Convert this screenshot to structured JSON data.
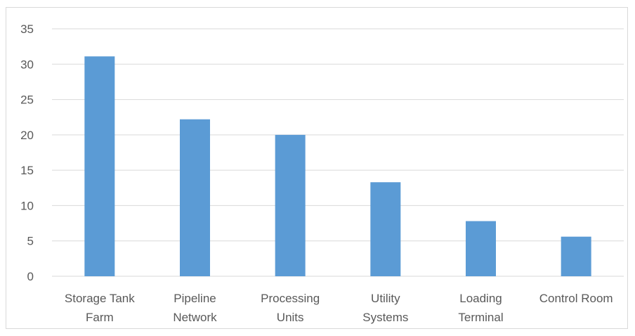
{
  "chart_data": {
    "type": "bar",
    "categories": [
      [
        "Storage Tank",
        "Farm"
      ],
      [
        "Pipeline",
        "Network"
      ],
      [
        "Processing",
        "Units"
      ],
      [
        "Utility",
        "Systems"
      ],
      [
        "Loading",
        "Terminal"
      ],
      [
        "Control Room"
      ]
    ],
    "values": [
      31.1,
      22.2,
      20.0,
      13.3,
      7.8,
      5.6
    ],
    "title": "",
    "xlabel": "",
    "ylabel": "",
    "ylim": [
      0,
      35
    ],
    "yticks": [
      0,
      5,
      10,
      15,
      20,
      25,
      30,
      35
    ],
    "grid": true,
    "legend": "none",
    "bar_color": "#5b9bd5",
    "grid_color": "#d9d9d9"
  }
}
